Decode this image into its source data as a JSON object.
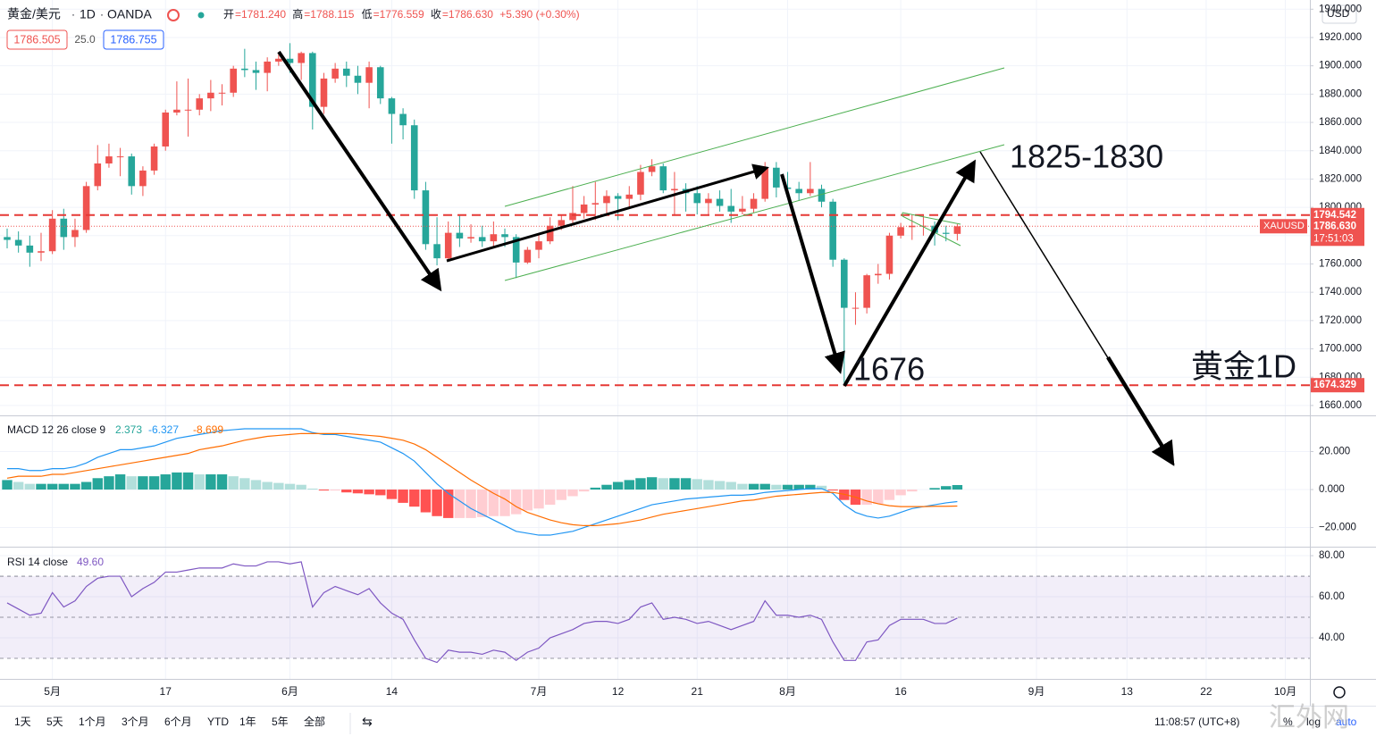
{
  "header": {
    "symbol": "黄金/美元",
    "interval": "1D",
    "source": "OANDA",
    "readout": [
      {
        "k": "开",
        "v": "=1781.240"
      },
      {
        "k": "高",
        "v": "=1788.115"
      },
      {
        "k": "低",
        "v": "=1776.559"
      },
      {
        "k": "收",
        "v": "=1786.630"
      },
      {
        "k": "",
        "v": "+5.390 (+0.30%)"
      }
    ],
    "sell": "1786.505",
    "spread": "25.0",
    "buy": "1786.755",
    "currency": "USD"
  },
  "chart_data": [
    {
      "type": "candlestick",
      "up_color": "#ef5350",
      "down_color": "#26a69a",
      "x": [
        0,
        1,
        2,
        3,
        4,
        5,
        6,
        7,
        8,
        9,
        10,
        11,
        12,
        13,
        14,
        15,
        16,
        17,
        18,
        19,
        20,
        21,
        22,
        23,
        24,
        25,
        26,
        27,
        28,
        29,
        30,
        31,
        32,
        33,
        34,
        35,
        36,
        37,
        38,
        39,
        40,
        41,
        42,
        43,
        44,
        45,
        46,
        47,
        48,
        49,
        50,
        51,
        52,
        53,
        54,
        55,
        56,
        57,
        58,
        59,
        60,
        61,
        62,
        63,
        64,
        65,
        66,
        67,
        68,
        69,
        70,
        71,
        72,
        73,
        74,
        75,
        76,
        77,
        78,
        79,
        80,
        81,
        82,
        83,
        84
      ],
      "open": [
        1779,
        1777,
        1773,
        1768,
        1769,
        1792,
        1779,
        1784,
        1815,
        1831,
        1836,
        1836,
        1815,
        1826,
        1843,
        1867,
        1869,
        1869,
        1877,
        1881,
        1881,
        1898,
        1897,
        1895,
        1903,
        1905,
        1902,
        1909,
        1871,
        1891,
        1898,
        1893,
        1888,
        1899,
        1877,
        1866,
        1858,
        1812,
        1774,
        1764,
        1782,
        1778,
        1779,
        1776,
        1781,
        1779,
        1761,
        1770,
        1776,
        1787,
        1791,
        1796,
        1802,
        1803,
        1808,
        1806,
        1809,
        1825,
        1829,
        1812,
        1813,
        1810,
        1803,
        1806,
        1801,
        1797,
        1799,
        1806,
        1828,
        1814,
        1813,
        1810,
        1813,
        1804,
        1763,
        1729,
        1729,
        1752,
        1753,
        1780,
        1786,
        1787,
        1787,
        1782,
        1781.24
      ],
      "high": [
        1785,
        1783,
        1780,
        1782,
        1798,
        1799,
        1792,
        1818,
        1844,
        1845,
        1842,
        1838,
        1829,
        1845,
        1869,
        1889,
        1891,
        1880,
        1890,
        1887,
        1900,
        1912,
        1903,
        1906,
        1908,
        1916,
        1910,
        1910,
        1895,
        1902,
        1903,
        1900,
        1903,
        1900,
        1878,
        1870,
        1862,
        1818,
        1793,
        1790,
        1795,
        1788,
        1787,
        1790,
        1785,
        1781,
        1772,
        1782,
        1793,
        1795,
        1815,
        1808,
        1818,
        1812,
        1810,
        1815,
        1830,
        1834,
        1831,
        1825,
        1817,
        1815,
        1810,
        1812,
        1813,
        1808,
        1810,
        1832,
        1832,
        1825,
        1818,
        1832,
        1816,
        1806,
        1764,
        1740,
        1753,
        1760,
        1782,
        1789,
        1795,
        1795,
        1790,
        1787,
        1788.115
      ],
      "low": [
        1771,
        1768,
        1758,
        1762,
        1767,
        1770,
        1772,
        1782,
        1812,
        1828,
        1822,
        1809,
        1808,
        1823,
        1840,
        1865,
        1850,
        1865,
        1868,
        1872,
        1878,
        1892,
        1883,
        1882,
        1900,
        1895,
        1890,
        1855,
        1866,
        1888,
        1885,
        1880,
        1870,
        1873,
        1845,
        1848,
        1806,
        1770,
        1759,
        1762,
        1772,
        1775,
        1772,
        1772,
        1772,
        1750,
        1760,
        1764,
        1774,
        1784,
        1789,
        1792,
        1791,
        1795,
        1791,
        1800,
        1805,
        1822,
        1810,
        1794,
        1797,
        1795,
        1794,
        1797,
        1789,
        1795,
        1796,
        1804,
        1807,
        1810,
        1805,
        1808,
        1800,
        1758,
        1676,
        1717,
        1725,
        1746,
        1749,
        1778,
        1777,
        1780,
        1773,
        1776,
        1776.559
      ],
      "close": [
        1777,
        1773,
        1768,
        1769,
        1792,
        1779,
        1784,
        1815,
        1831,
        1836,
        1836,
        1815,
        1826,
        1843,
        1867,
        1869,
        1869,
        1877,
        1881,
        1881,
        1898,
        1897,
        1895,
        1903,
        1905,
        1902,
        1909,
        1871,
        1891,
        1898,
        1893,
        1888,
        1899,
        1877,
        1866,
        1858,
        1812,
        1774,
        1764,
        1782,
        1778,
        1779,
        1776,
        1781,
        1779,
        1761,
        1770,
        1776,
        1787,
        1791,
        1796,
        1802,
        1803,
        1808,
        1806,
        1809,
        1825,
        1829,
        1812,
        1813,
        1810,
        1803,
        1806,
        1801,
        1797,
        1799,
        1806,
        1828,
        1814,
        1813,
        1810,
        1813,
        1804,
        1763,
        1729,
        1729,
        1752,
        1753,
        1780,
        1786,
        1787,
        1787,
        1782,
        1781.24,
        1786.63
      ],
      "xlim": [
        -0.632,
        115.17
      ],
      "xticks": [
        {
          "value": 4,
          "label": "5月"
        },
        {
          "value": 14,
          "label": "17"
        },
        {
          "value": 25,
          "label": "6月"
        },
        {
          "value": 34,
          "label": "14"
        },
        {
          "value": 47,
          "label": "7月"
        },
        {
          "value": 54,
          "label": "12"
        },
        {
          "value": 61,
          "label": "21"
        },
        {
          "value": 69,
          "label": "8月"
        },
        {
          "value": 79,
          "label": "16"
        },
        {
          "value": 91,
          "label": "9月"
        },
        {
          "value": 99,
          "label": "13"
        },
        {
          "value": 106,
          "label": "22"
        },
        {
          "value": 113,
          "label": "10月"
        }
      ],
      "ylim": [
        1653,
        1946.5
      ],
      "yticks": [
        {
          "value": 1660,
          "label": "1660.000"
        },
        {
          "value": 1680,
          "label": "1680.000"
        },
        {
          "value": 1700,
          "label": "1700.000"
        },
        {
          "value": 1720,
          "label": "1720.000"
        },
        {
          "value": 1740,
          "label": "1740.000"
        },
        {
          "value": 1760,
          "label": "1760.000"
        },
        {
          "value": 1780,
          "label": "1780.000"
        },
        {
          "value": 1800,
          "label": "1800.000"
        },
        {
          "value": 1820,
          "label": "1820.000"
        },
        {
          "value": 1840,
          "label": "1840.000"
        },
        {
          "value": 1860,
          "label": "1860.000"
        },
        {
          "value": 1880,
          "label": "1880.000"
        },
        {
          "value": 1900,
          "label": "1900.000"
        },
        {
          "value": 1920,
          "label": "1920.000"
        },
        {
          "value": 1940,
          "label": "1940.000"
        }
      ],
      "price_lines": [
        1794.542,
        1674.329
      ],
      "last_price": {
        "value": 1786.63,
        "label": "1786.630"
      },
      "symbol": "XAUUSD",
      "countdown": "17:51:03",
      "annotations": [
        "1825-1830",
        "1676",
        "黄金1D"
      ]
    },
    {
      "type": "macd",
      "title": "MACD 12 26 close 9",
      "series": [
        {
          "name": "histogram",
          "type": "bar",
          "colors": [
            "#26a69a",
            "#b2dfdb",
            "#ff5252",
            "#ffcdd2"
          ],
          "values": [
            5,
            4,
            3,
            3,
            3,
            3,
            3,
            4,
            6,
            7,
            8,
            7,
            7,
            7,
            8,
            9,
            9,
            8,
            8,
            8,
            7,
            6,
            5,
            4,
            3.5,
            3,
            2.5,
            0.5,
            -0.5,
            -0.5,
            -1.5,
            -2,
            -2.5,
            -3,
            -5,
            -7,
            -9,
            -12,
            -14,
            -15,
            -15,
            -15,
            -14.5,
            -14,
            -14,
            -13,
            -11,
            -10,
            -8,
            -5.5,
            -3.5,
            -1,
            1,
            2.5,
            4,
            5,
            6,
            6.5,
            6,
            6,
            6,
            5.5,
            5,
            4.5,
            4,
            3,
            3,
            3,
            2.5,
            2.5,
            2.5,
            2.5,
            2,
            -0.5,
            -5.5,
            -8,
            -8,
            -7.5,
            -5.5,
            -3,
            -1,
            0,
            0.8,
            1.8,
            2.373
          ]
        },
        {
          "name": "macd",
          "type": "line",
          "color": "#2196f3",
          "values": [
            11,
            11,
            10,
            10,
            11,
            11,
            12,
            14,
            17,
            19,
            21,
            21,
            22,
            23,
            25,
            27,
            28,
            29,
            30,
            31,
            31.5,
            32,
            32,
            32,
            32,
            32,
            32,
            30,
            29,
            29,
            28,
            27,
            26,
            25,
            22,
            19,
            15,
            9,
            3,
            -2,
            -6,
            -10,
            -13,
            -16,
            -19,
            -22,
            -23,
            -24,
            -24,
            -23,
            -22,
            -20,
            -18,
            -16,
            -14,
            -12,
            -10,
            -8,
            -7,
            -6,
            -5,
            -4.5,
            -4,
            -3.5,
            -3,
            -3,
            -2.5,
            -1.5,
            -1,
            -0.5,
            0,
            0.5,
            0.5,
            -2,
            -8,
            -12,
            -14,
            -15,
            -14,
            -12,
            -10,
            -9,
            -8,
            -7,
            -6.327
          ]
        },
        {
          "name": "signal",
          "type": "line",
          "color": "#ff6d00",
          "values": [
            6,
            7,
            7,
            7,
            8,
            8,
            9,
            10,
            11,
            12,
            13,
            14,
            15,
            16,
            17,
            18,
            19,
            21,
            22,
            23,
            24.5,
            26,
            27,
            28,
            28.5,
            29,
            29.5,
            29.5,
            29.5,
            29.5,
            29.5,
            29,
            28.5,
            28,
            27,
            26,
            24,
            21,
            17,
            13,
            9,
            5,
            1.5,
            -2,
            -5,
            -9,
            -12,
            -14,
            -16,
            -17.5,
            -18.5,
            -19,
            -19,
            -18.5,
            -18,
            -17,
            -16,
            -14.5,
            -13,
            -12,
            -11,
            -10,
            -9,
            -8,
            -7,
            -6,
            -5.5,
            -4.5,
            -3.5,
            -3,
            -2.5,
            -2,
            -1.5,
            -1.5,
            -2.5,
            -4,
            -6,
            -7.5,
            -8.5,
            -9,
            -9,
            -9,
            -8.8,
            -8.8,
            -8.699
          ]
        }
      ],
      "ylim": [
        -30.1,
        38.6
      ],
      "yticks": [
        {
          "value": 20,
          "label": "20.000"
        },
        {
          "value": 0,
          "label": "0.000"
        },
        {
          "value": -20,
          "label": "−20.000"
        }
      ]
    },
    {
      "type": "line",
      "title": "RSI 14 close",
      "readout": "49.60",
      "color": "#7e57c2",
      "values": [
        57,
        54,
        51,
        52,
        62,
        55,
        58,
        65,
        69,
        70,
        70,
        60,
        64,
        67,
        72,
        72,
        73,
        74,
        74,
        74,
        76,
        75,
        75,
        77,
        77,
        76,
        77,
        55,
        62,
        65,
        63,
        61,
        64,
        57,
        52,
        49,
        39,
        30,
        28,
        34,
        33,
        33,
        32,
        34,
        33,
        29,
        33,
        35,
        40,
        42,
        44,
        47,
        48,
        48,
        47,
        49,
        55,
        57,
        49,
        50,
        49,
        47,
        48,
        46,
        44,
        46,
        48,
        58,
        51,
        51,
        50,
        51,
        49,
        38,
        29,
        29,
        38,
        39,
        46,
        49,
        49,
        49,
        47,
        47,
        49.6
      ],
      "bands": [
        30,
        70
      ],
      "midline": 50,
      "ylim": [
        20,
        83.5
      ],
      "yticks": [
        {
          "value": 80,
          "label": "80.00"
        },
        {
          "value": 60,
          "label": "60.00"
        },
        {
          "value": 40,
          "label": "40.00"
        }
      ]
    }
  ],
  "toolbar": {
    "ranges": [
      "1天",
      "5天",
      "1个月",
      "3个月",
      "6个月",
      "YTD",
      "1年",
      "5年",
      "全部"
    ],
    "clock": "11:08:57 (UTC+8)",
    "percent": "%",
    "log": "log",
    "auto": "auto"
  },
  "watermark": "汇外网"
}
